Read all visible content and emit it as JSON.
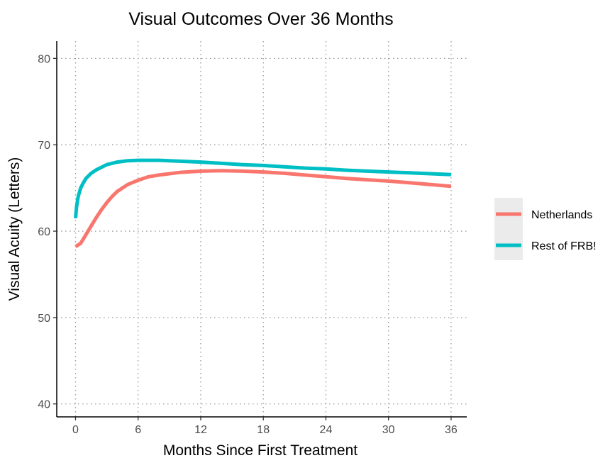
{
  "chart_data": {
    "type": "line",
    "title": "Visual Outcomes Over 36 Months",
    "xlabel": "Months Since First Treatment",
    "ylabel": "Visual Acuity (Letters)",
    "xlim": [
      -1.8,
      37.5
    ],
    "ylim": [
      38.5,
      82
    ],
    "x_ticks": [
      0,
      6,
      12,
      18,
      24,
      30,
      36
    ],
    "y_ticks": [
      40,
      50,
      60,
      70,
      80
    ],
    "grid": "dotted major gridlines",
    "legend_position": "right",
    "series": [
      {
        "name": "Netherlands",
        "color": "#F8766D",
        "x": [
          0,
          0.5,
          1,
          1.5,
          2,
          2.5,
          3,
          3.5,
          4,
          5,
          6,
          7,
          8,
          10,
          12,
          14,
          16,
          18,
          20,
          22,
          24,
          26,
          28,
          30,
          32,
          34,
          36
        ],
        "y": [
          58.2,
          58.6,
          59.6,
          60.6,
          61.6,
          62.5,
          63.3,
          64.0,
          64.6,
          65.4,
          65.9,
          66.3,
          66.5,
          66.8,
          66.95,
          67.0,
          66.95,
          66.85,
          66.7,
          66.5,
          66.3,
          66.1,
          65.95,
          65.8,
          65.6,
          65.4,
          65.2
        ]
      },
      {
        "name": "Rest of FRB!",
        "color": "#00BFC4",
        "x": [
          0,
          0.1,
          0.25,
          0.5,
          0.75,
          1,
          1.5,
          2,
          2.5,
          3,
          4,
          5,
          6,
          7,
          8,
          10,
          12,
          14,
          16,
          18,
          20,
          22,
          24,
          26,
          28,
          30,
          32,
          34,
          36
        ],
        "y": [
          61.5,
          62.8,
          64.0,
          65.0,
          65.6,
          66.1,
          66.7,
          67.1,
          67.4,
          67.7,
          68.0,
          68.15,
          68.2,
          68.2,
          68.2,
          68.1,
          68.0,
          67.85,
          67.7,
          67.6,
          67.45,
          67.3,
          67.2,
          67.05,
          66.95,
          66.85,
          66.75,
          66.65,
          66.55
        ]
      }
    ]
  }
}
